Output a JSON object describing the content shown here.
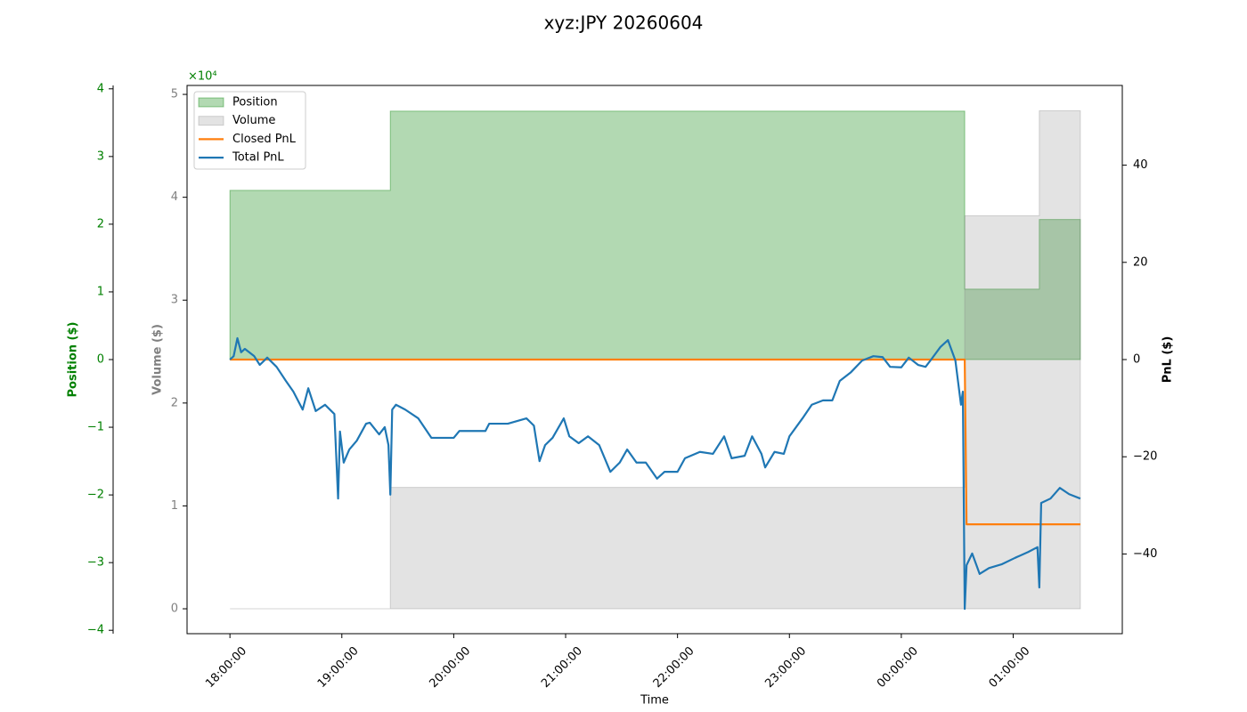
{
  "chart_data": {
    "type": "line",
    "title": "xyz:JPY 20260604",
    "xlabel": "Time",
    "ylabel": "Volume ($)",
    "ycolor": "gray",
    "yoffset": "×10⁴",
    "y2label": "PnL ($)",
    "y3label": "Position ($)",
    "y3color": "green",
    "legend": "upper left",
    "grid": false,
    "xlim": [
      "17:37:00",
      "01:58:30"
    ],
    "xticks": [
      "18:00:00",
      "19:00:00",
      "20:00:00",
      "21:00:00",
      "22:00:00",
      "23:00:00",
      "00:00:00",
      "01:00:00"
    ],
    "ylim": [
      -2420,
      50870
    ],
    "yticks": [
      0,
      {
        "value": 10000,
        "label": "1"
      },
      {
        "value": 20000,
        "label": "2"
      },
      {
        "value": 30000,
        "label": "3"
      },
      {
        "value": 40000,
        "label": "4"
      },
      {
        "value": 50000,
        "label": "5"
      }
    ],
    "y2lim": [
      -56.4,
      56.4
    ],
    "y2ticks": [
      {
        "value": -40,
        "label": "−40"
      },
      {
        "value": -20,
        "label": "−20"
      },
      0,
      20,
      40
    ],
    "y3lim": [
      -4.05,
      4.05
    ],
    "y3ticks": [
      {
        "value": -4,
        "label": "−4"
      },
      {
        "value": -3,
        "label": "−3"
      },
      {
        "value": -2,
        "label": "−2"
      },
      {
        "value": -1,
        "label": "−1"
      },
      0,
      1,
      2,
      3,
      4
    ],
    "series": [
      {
        "name": "Position",
        "type": "area",
        "drawstyle": "steps-post",
        "axis": "y3",
        "color": "#008000",
        "alpha": 0.3,
        "x": [
          "18:00:00",
          "19:26:00",
          "00:34:00",
          "01:14:00",
          "01:36:00"
        ],
        "values": [
          2.5,
          3.67,
          1.04,
          2.07,
          2.07
        ]
      },
      {
        "name": "Volume",
        "type": "area",
        "drawstyle": "steps-post",
        "axis": "y",
        "color": "#808080",
        "alpha": 0.22,
        "x": [
          "18:00:00",
          "19:26:00",
          "00:34:00",
          "01:14:00",
          "01:36:00"
        ],
        "values": [
          0,
          11800,
          38200,
          48400,
          48400
        ]
      },
      {
        "name": "Closed PnL",
        "type": "line",
        "axis": "y2",
        "color": "#ff7f0e",
        "x": [
          "18:00:00",
          "00:34:00",
          "00:35:00",
          "01:36:00"
        ],
        "values": [
          0,
          0,
          -33.9,
          -33.9
        ]
      },
      {
        "name": "Total PnL",
        "type": "line",
        "axis": "y2",
        "color": "#1f77b4",
        "x": [
          "18:00:00",
          "18:02:00",
          "18:04:00",
          "18:06:00",
          "18:08:00",
          "18:13:00",
          "18:16:00",
          "18:20:00",
          "18:25:00",
          "18:30:00",
          "18:34:00",
          "18:39:00",
          "18:42:00",
          "18:46:00",
          "18:51:00",
          "18:56:00",
          "18:58:00",
          "18:59:00",
          "19:01:00",
          "19:04:00",
          "19:08:00",
          "19:13:00",
          "19:15:00",
          "19:20:00",
          "19:23:00",
          "19:25:00",
          "19:26:00",
          "19:27:00",
          "19:29:00",
          "19:34:00",
          "19:41:00",
          "19:48:00",
          "20:00:00",
          "20:03:00",
          "20:17:00",
          "20:19:00",
          "20:29:00",
          "20:39:00",
          "20:43:00",
          "20:46:00",
          "20:49:00",
          "20:53:00",
          "20:59:00",
          "21:02:00",
          "21:07:00",
          "21:12:00",
          "21:18:00",
          "21:24:00",
          "21:29:00",
          "21:33:00",
          "21:38:00",
          "21:43:00",
          "21:49:00",
          "21:53:00",
          "22:00:00",
          "22:04:00",
          "22:12:00",
          "22:19:00",
          "22:25:00",
          "22:29:00",
          "22:36:00",
          "22:40:00",
          "22:45:00",
          "22:47:00",
          "22:52:00",
          "22:57:00",
          "23:00:00",
          "23:07:00",
          "23:12:00",
          "23:18:00",
          "23:23:00",
          "23:27:00",
          "23:33:00",
          "23:39:00",
          "23:45:00",
          "23:50:00",
          "23:54:00",
          "00:00:00",
          "00:04:00",
          "00:09:00",
          "00:13:00",
          "00:16:00",
          "00:21:00",
          "00:25:00",
          "00:29:00",
          "00:32:00",
          "00:33:00",
          "00:34:00",
          "00:35:00",
          "00:38:00",
          "00:42:00",
          "00:47:00",
          "00:54:00",
          "01:01:00",
          "01:08:00",
          "01:13:00",
          "01:14:00",
          "01:15:00",
          "01:20:00",
          "01:25:00",
          "01:30:00",
          "01:36:00"
        ],
        "values": [
          0,
          0.7,
          4.4,
          1.5,
          2.2,
          0.7,
          -1.1,
          0.4,
          -1.5,
          -4.4,
          -6.6,
          -10.3,
          -5.9,
          -10.6,
          -9.3,
          -11.2,
          -28.6,
          -14.8,
          -21.2,
          -18.5,
          -16.7,
          -13.2,
          -13.0,
          -15.4,
          -13.9,
          -17.6,
          -27.8,
          -10.3,
          -9.3,
          -10.3,
          -12.1,
          -16.1,
          -16.1,
          -14.7,
          -14.7,
          -13.2,
          -13.2,
          -12.1,
          -13.6,
          -20.9,
          -17.6,
          -16.1,
          -12.1,
          -15.8,
          -17.2,
          -15.8,
          -17.6,
          -23.1,
          -21.2,
          -18.5,
          -21.2,
          -21.2,
          -24.5,
          -23.1,
          -23.1,
          -20.3,
          -19.0,
          -19.4,
          -15.8,
          -20.3,
          -19.8,
          -15.8,
          -19.4,
          -22.2,
          -19.0,
          -19.4,
          -15.8,
          -12.1,
          -9.3,
          -8.4,
          -8.4,
          -4.4,
          -2.6,
          -0.2,
          0.7,
          0.5,
          -1.5,
          -1.6,
          0.4,
          -1.1,
          -1.5,
          0,
          2.6,
          4.0,
          -0.2,
          -9.3,
          -6.6,
          -51.3,
          -42.3,
          -39.9,
          -44.1,
          -42.9,
          -42.1,
          -40.8,
          -39.6,
          -38.6,
          -46.9,
          -29.5,
          -28.6,
          -26.4,
          -27.7,
          -28.6
        ]
      }
    ]
  }
}
